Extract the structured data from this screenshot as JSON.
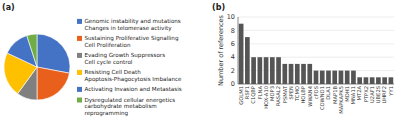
{
  "chart_data": [
    {
      "type": "pie",
      "title": "(a)",
      "categories": [
        "Genomic instability and mutations\nChanges in telomerase activity",
        "Sustaining Proliferative Signalling\nCell Proliferation",
        "Evading Growth Suppressors\nCell cycle control",
        "Resisting Cell Death\nApoptosis-Phagocytosis Imbalance",
        "Activating Invasion and Metastasis",
        "Dysregulated cellular energetics\ncarbohydrate metabolism\nreprogramming"
      ],
      "values": [
        28,
        22,
        10,
        22,
        13,
        5
      ],
      "colors": [
        "#4472C4",
        "#E8601C",
        "#808080",
        "#FFC000",
        "#4472C4",
        "#70AD47"
      ],
      "legend": "right"
    },
    {
      "type": "bar",
      "title": "(b)",
      "categories": [
        "GOLM1",
        "RSF1",
        "C1QBP",
        "FLNA",
        "HOX-A10",
        "MOP3",
        "RASAL2",
        "PSMAT",
        "SPEN",
        "TCMO",
        "HOLBP",
        "WWAN4",
        "cFOS",
        "COWNO1",
        "DLA1",
        "MAP1B",
        "MAPKAPK5",
        "MDH1",
        "MNA11",
        "MT2A",
        "PTPX2",
        "U2AF1",
        "UBE2S",
        "UHRF2",
        "YY1"
      ],
      "values": [
        9,
        7,
        4,
        4,
        4,
        4,
        4,
        3,
        3,
        3,
        3,
        3,
        2,
        2,
        2,
        2,
        2,
        2,
        2,
        1,
        1,
        1,
        1,
        1,
        1
      ],
      "color": "#555555",
      "y_label": "Number of references",
      "ylim": [
        0,
        10
      ],
      "yticks": [
        0,
        2,
        4,
        6,
        8,
        10
      ],
      "grid": true
    }
  ]
}
